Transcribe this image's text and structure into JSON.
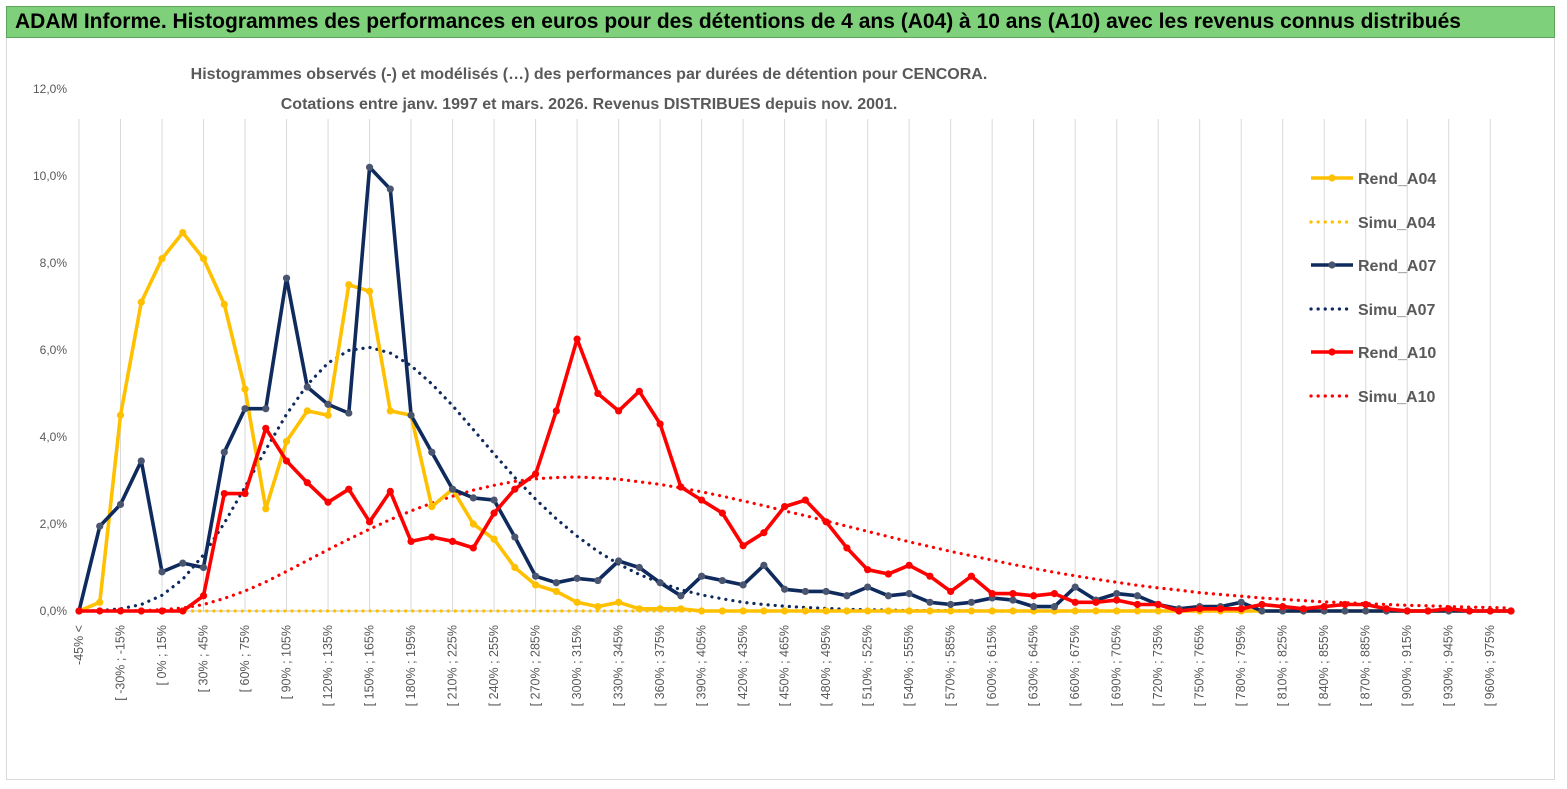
{
  "banner": {
    "title": "ADAM Informe. Histogrammes des performances en euros pour des détentions de 4 ans (A04) à 10 ans (A10) avec les revenus connus distribués"
  },
  "colors": {
    "banner_bg": "#7fd07a",
    "a04": "#ffc000",
    "a07": "#0f2a5c",
    "a10": "#ff0000",
    "grid": "#d9d9d9",
    "text": "#595959"
  },
  "chart_data": {
    "type": "line",
    "title_line1": "Histogrammes observés (-) et modélisés (…) des performances par durées de détention pour CENCORA.",
    "title_line2": "Cotations entre janv. 1997 et mars. 2026. Revenus DISTRIBUES depuis nov. 2001.",
    "xlabel": "",
    "ylabel": "",
    "ylim": [
      0,
      12
    ],
    "yticks": [
      "0,0%",
      "2,0%",
      "4,0%",
      "6,0%",
      "8,0%",
      "10,0%",
      "12,0%"
    ],
    "grid": "vertical",
    "legend_position": "right",
    "x_labels": [
      "-45% <",
      "[ -30% ; -15%",
      "[ 0% ; 15%",
      "[ 30% ; 45%",
      "[ 60% ; 75%",
      "[ 90% ; 105%",
      "[ 120% ; 135%",
      "[ 150% ; 165%",
      "[ 180% ; 195%",
      "[ 210% ; 225%",
      "[ 240% ; 255%",
      "[ 270% ; 285%",
      "[ 300% ; 315%",
      "[ 330% ; 345%",
      "[ 360% ; 375%",
      "[ 390% ; 405%",
      "[ 420% ; 435%",
      "[ 450% ; 465%",
      "[ 480% ; 495%",
      "[ 510% ; 525%",
      "[ 540% ; 555%",
      "[ 570% ; 585%",
      "[ 600% ; 615%",
      "[ 630% ; 645%",
      "[ 660% ; 675%",
      "[ 690% ; 705%",
      "[ 720% ; 735%",
      "[ 750% ; 765%",
      "[ 780% ; 795%",
      "[ 810% ; 825%",
      "[ 840% ; 855%",
      "[ 870% ; 885%",
      "[ 900% ; 915%",
      "[ 930% ; 945%",
      "[ 960% ; 975%"
    ],
    "series": [
      {
        "name": "Rend_A04",
        "style": "solid",
        "color": "#ffc000",
        "values": [
          0,
          0.2,
          4.5,
          7.1,
          8.1,
          8.7,
          8.1,
          7.05,
          5.1,
          2.35,
          3.9,
          4.6,
          4.5,
          7.5,
          7.35,
          4.6,
          4.5,
          2.4,
          2.8,
          2.0,
          1.65,
          1.0,
          0.6,
          0.45,
          0.2,
          0.1,
          0.2,
          0.05,
          0.05,
          0.05,
          0,
          0,
          0,
          0,
          0,
          0,
          0,
          0,
          0,
          0,
          0,
          0,
          0,
          0,
          0,
          0,
          0,
          0,
          0,
          0,
          0,
          0,
          0,
          0,
          0,
          0,
          0,
          0,
          0,
          0,
          0,
          0,
          0,
          0,
          0,
          0,
          0,
          0,
          0,
          0
        ]
      },
      {
        "name": "Simu_A04",
        "style": "dotted",
        "color": "#ffc000",
        "values": [
          0,
          0,
          0,
          0,
          0,
          0,
          0,
          0,
          0,
          0,
          0,
          0,
          0,
          0,
          0,
          0,
          0,
          0,
          0,
          0,
          0,
          0,
          0,
          0,
          0,
          0,
          0,
          0,
          0,
          0,
          0,
          0,
          0,
          0,
          0,
          0,
          0,
          0,
          0,
          0,
          0,
          0,
          0,
          0,
          0,
          0,
          0,
          0,
          0,
          0,
          0,
          0,
          0,
          0,
          0,
          0,
          0,
          0,
          0,
          0,
          0,
          0,
          0,
          0,
          0,
          0,
          0,
          0,
          0,
          0
        ]
      },
      {
        "name": "Rend_A07",
        "style": "solid",
        "color": "#0f2a5c",
        "values": [
          0,
          1.95,
          2.45,
          3.45,
          0.9,
          1.1,
          1.0,
          3.65,
          4.65,
          4.65,
          7.65,
          5.15,
          4.75,
          4.55,
          10.2,
          9.7,
          4.5,
          3.65,
          2.8,
          2.6,
          2.55,
          1.7,
          0.8,
          0.65,
          0.75,
          0.7,
          1.15,
          1.0,
          0.65,
          0.35,
          0.8,
          0.7,
          0.6,
          1.05,
          0.5,
          0.45,
          0.45,
          0.35,
          0.55,
          0.35,
          0.4,
          0.2,
          0.15,
          0.2,
          0.3,
          0.25,
          0.1,
          0.1,
          0.55,
          0.25,
          0.4,
          0.35,
          0.15,
          0.05,
          0.1,
          0.1,
          0.2,
          0,
          0,
          0,
          0,
          0,
          0,
          0,
          0,
          0,
          0,
          0,
          0,
          0
        ]
      },
      {
        "name": "Simu_A07",
        "style": "dotted",
        "color": "#0f2a5c",
        "values": [
          0,
          0.01,
          0.05,
          0.15,
          0.36,
          0.73,
          1.29,
          2.02,
          2.85,
          3.71,
          4.52,
          5.2,
          5.7,
          5.99,
          6.06,
          5.93,
          5.64,
          5.22,
          4.72,
          4.17,
          3.61,
          3.07,
          2.57,
          2.12,
          1.72,
          1.37,
          1.08,
          0.84,
          0.65,
          0.49,
          0.37,
          0.28,
          0.2,
          0.15,
          0.11,
          0.08,
          0.06,
          0.04,
          0.03,
          0.02,
          0.01,
          0.01,
          0.01,
          0,
          0,
          0,
          0,
          0,
          0,
          0,
          0,
          0,
          0,
          0,
          0,
          0,
          0,
          0,
          0,
          0,
          0,
          0,
          0,
          0,
          0,
          0,
          0,
          0,
          0,
          0
        ]
      },
      {
        "name": "Rend_A10",
        "style": "solid",
        "color": "#ff0000",
        "values": [
          0,
          0,
          0,
          0,
          0,
          0,
          0.35,
          2.7,
          2.7,
          4.2,
          3.45,
          2.95,
          2.5,
          2.8,
          2.05,
          2.75,
          1.6,
          1.7,
          1.6,
          1.45,
          2.25,
          2.8,
          3.15,
          4.6,
          6.25,
          5.0,
          4.6,
          5.05,
          4.3,
          2.85,
          2.55,
          2.25,
          1.5,
          1.8,
          2.4,
          2.55,
          2.05,
          1.45,
          0.95,
          0.85,
          1.05,
          0.8,
          0.45,
          0.8,
          0.4,
          0.4,
          0.35,
          0.4,
          0.2,
          0.2,
          0.25,
          0.15,
          0.15,
          0.0,
          0.05,
          0.05,
          0.05,
          0.15,
          0.1,
          0.05,
          0.1,
          0.15,
          0.15,
          0.05,
          0,
          0,
          0.05,
          0,
          0,
          0
        ]
      },
      {
        "name": "Simu_A10",
        "style": "dotted",
        "color": "#ff0000",
        "values": [
          0,
          0,
          0,
          0.01,
          0.03,
          0.07,
          0.15,
          0.29,
          0.46,
          0.67,
          0.91,
          1.16,
          1.41,
          1.65,
          1.88,
          2.1,
          2.3,
          2.48,
          2.64,
          2.78,
          2.89,
          2.98,
          3.04,
          3.07,
          3.08,
          3.06,
          3.03,
          2.97,
          2.91,
          2.83,
          2.74,
          2.64,
          2.53,
          2.42,
          2.3,
          2.19,
          2.07,
          1.95,
          1.83,
          1.71,
          1.59,
          1.48,
          1.37,
          1.27,
          1.17,
          1.07,
          0.98,
          0.89,
          0.81,
          0.73,
          0.66,
          0.59,
          0.53,
          0.48,
          0.42,
          0.38,
          0.34,
          0.3,
          0.27,
          0.24,
          0.21,
          0.19,
          0.17,
          0.15,
          0.13,
          0.12,
          0.1,
          0.09,
          0.08,
          0.07
        ]
      }
    ]
  }
}
